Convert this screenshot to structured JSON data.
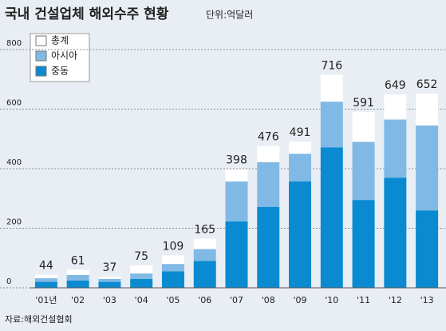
{
  "chart_data": {
    "type": "bar",
    "title": "국내 건설업체 해외수주 현황",
    "subtitle": "단위:억달러",
    "source": "자료:해외건설협회",
    "categories": [
      "'01년",
      "'02",
      "'03",
      "'04",
      "'05",
      "'06",
      "'07",
      "'08",
      "'09",
      "'10",
      "'11",
      "'12",
      "'13"
    ],
    "series": [
      {
        "name": "총계",
        "color": "#ffffff",
        "values": [
          44,
          61,
          37,
          75,
          109,
          165,
          398,
          476,
          491,
          716,
          591,
          649,
          652
        ]
      },
      {
        "name": "아시아",
        "color": "#80b9e5",
        "values": [
          12,
          18,
          10,
          18,
          25,
          40,
          134,
          150,
          93,
          153,
          195,
          195,
          285
        ]
      },
      {
        "name": "중동",
        "color": "#0a8ad0",
        "values": [
          20,
          25,
          20,
          30,
          55,
          90,
          223,
          272,
          357,
          472,
          295,
          370,
          260
        ]
      }
    ],
    "ylim": [
      0,
      800
    ],
    "yticks": [
      0,
      200,
      400,
      600,
      800
    ],
    "grid": true
  }
}
